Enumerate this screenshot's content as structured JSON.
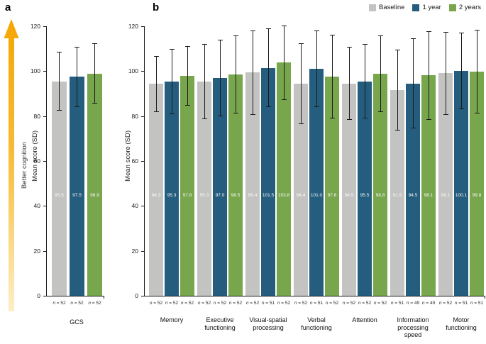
{
  "figure": {
    "panel_a_letter": "a",
    "panel_b_letter": "b",
    "arrow_label": "Better cognition",
    "y_axis_label": "Mean score (SD)",
    "n_symbol": "n",
    "colors": {
      "baseline": "#c3c3c1",
      "one_year": "#255d7e",
      "two_years": "#77a64d",
      "error_bar": "#1a1a1a",
      "arrow_top": "#f5a500",
      "arrow_bottom": "#fdeec4"
    }
  },
  "legend": {
    "position": "top-right",
    "items": [
      {
        "label": "Baseline",
        "color": "#c3c3c1"
      },
      {
        "label": "1 year",
        "color": "#255d7e"
      },
      {
        "label": "2 years",
        "color": "#77a64d"
      }
    ]
  },
  "chart_data": [
    {
      "type": "bar",
      "panel": "a",
      "ylabel": "Mean score (SD)",
      "xlabel": "",
      "ylim": [
        0,
        120
      ],
      "ytick_step": 20,
      "grid": false,
      "error_bars": "standard deviation, symmetric caps",
      "categories": [
        "GCS"
      ],
      "series": [
        {
          "name": "Baseline",
          "values": [
            "95.5"
          ],
          "sd": [
            13.0
          ],
          "n": [
            52
          ]
        },
        {
          "name": "1 year",
          "values": [
            "97.5"
          ],
          "sd": [
            13.5
          ],
          "n": [
            52
          ]
        },
        {
          "name": "2 years",
          "values": [
            "98.9"
          ],
          "sd": [
            13.4
          ],
          "n": [
            52
          ]
        }
      ]
    },
    {
      "type": "bar",
      "panel": "b",
      "ylabel": "Mean score (SD)",
      "xlabel": "",
      "ylim": [
        0,
        120
      ],
      "ytick_step": 20,
      "grid": false,
      "error_bars": "standard deviation, symmetric caps",
      "legend_position": "top-right",
      "categories": [
        "Memory",
        "Executive functioning",
        "Visual-spatial processing",
        "Verbal functioning",
        "Attention",
        "Information processing speed",
        "Motor functioning"
      ],
      "series": [
        {
          "name": "Baseline",
          "values": [
            "94.3",
            "95.3",
            "99.4",
            "94.4",
            "94.5",
            "91.5",
            "99.1"
          ],
          "sd": [
            12.4,
            16.7,
            18.8,
            18.0,
            16.3,
            18.0,
            18.5
          ],
          "n": [
            52,
            52,
            52,
            52,
            52,
            51,
            52
          ]
        },
        {
          "name": "1 year",
          "values": [
            "95.3",
            "97.0",
            "101.5",
            "101.0",
            "95.5",
            "94.5",
            "100.1"
          ],
          "sd": [
            14.6,
            17.0,
            17.5,
            17.0,
            16.5,
            20.0,
            17.0
          ],
          "n": [
            52,
            52,
            51,
            51,
            52,
            49,
            51
          ]
        },
        {
          "name": "2 years",
          "values": [
            "97.8",
            "98.5",
            "103.8",
            "97.6",
            "98.8",
            "98.1",
            "99.8"
          ],
          "sd": [
            13.3,
            17.3,
            16.5,
            18.5,
            17.0,
            19.8,
            18.5
          ],
          "n": [
            52,
            52,
            52,
            52,
            52,
            49,
            51
          ]
        }
      ]
    }
  ]
}
